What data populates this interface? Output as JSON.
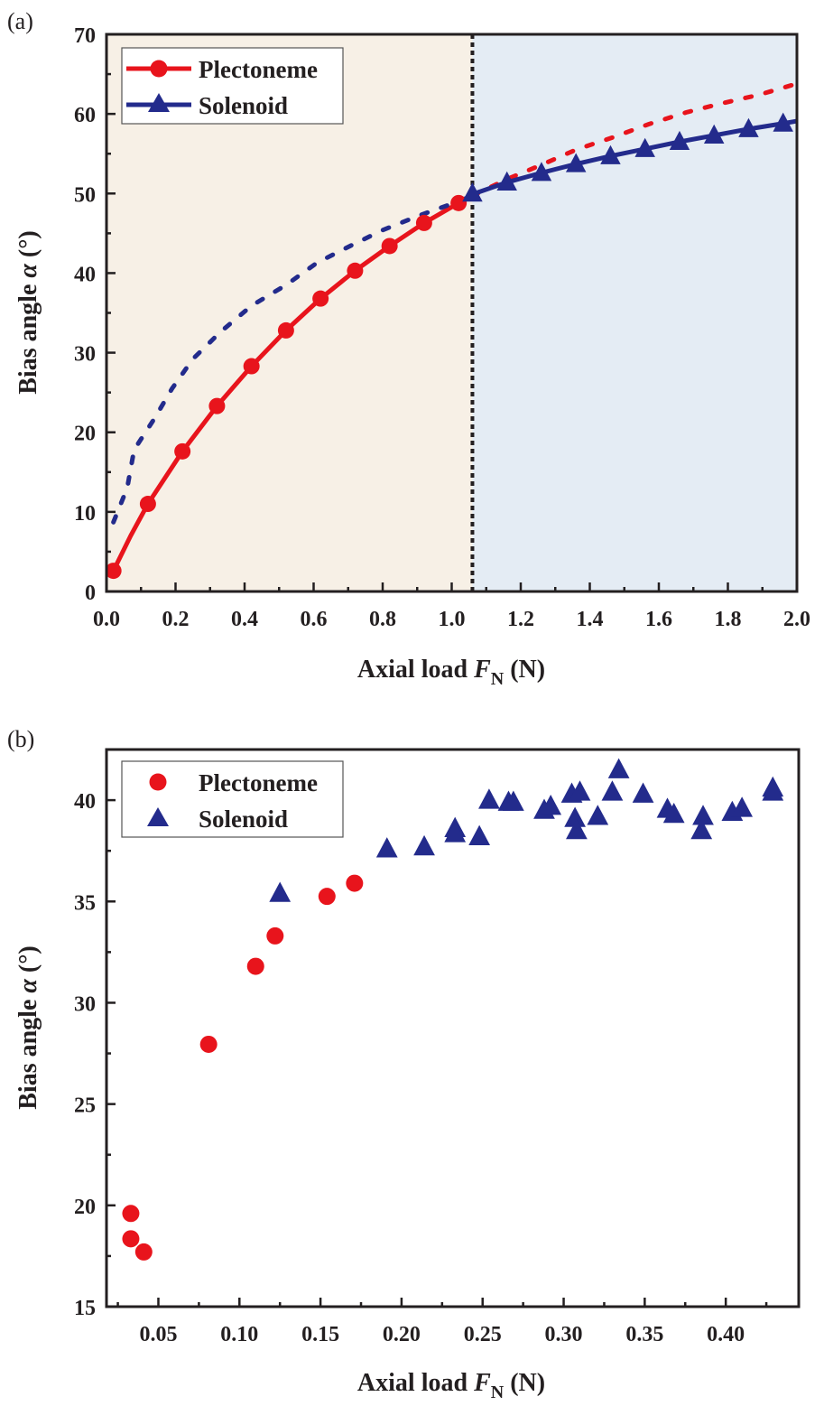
{
  "colors": {
    "plectoneme": "#e8141c",
    "solenoid": "#232b8c",
    "left_region": "#f7f0e6",
    "right_region": "#e4ecf4",
    "axis": "#231f20"
  },
  "chart_data": [
    {
      "panel_label": "(a)",
      "type": "line",
      "xlabel": {
        "prefix": "Axial load ",
        "var": "F",
        "sub": "N",
        "suffix": " (N)"
      },
      "ylabel": {
        "prefix": "Bias angle ",
        "var": "α",
        "suffix": " (°)"
      },
      "xlim": [
        0,
        2.0
      ],
      "ylim": [
        0,
        70
      ],
      "xticks": [
        0.0,
        0.2,
        0.4,
        0.6,
        0.8,
        1.0,
        1.2,
        1.4,
        1.6,
        1.8,
        2.0
      ],
      "xtick_labels": [
        "0.0",
        "0.2",
        "0.4",
        "0.6",
        "0.8",
        "1.0",
        "1.2",
        "1.4",
        "1.6",
        "1.8",
        "2.0"
      ],
      "yticks": [
        0,
        10,
        20,
        30,
        40,
        50,
        60,
        70
      ],
      "ytick_labels": [
        "0",
        "10",
        "20",
        "30",
        "40",
        "50",
        "60",
        "70"
      ],
      "grid": false,
      "legend_placement": "top-left",
      "transition_x": 1.06,
      "regions": [
        {
          "from": 0,
          "to": 1.06,
          "color": "#f7f0e6"
        },
        {
          "from": 1.06,
          "to": 2.0,
          "color": "#e4ecf4"
        }
      ],
      "series": [
        {
          "name": "Plectoneme",
          "marker": "circle",
          "color": "#e8141c",
          "x": [
            0.02,
            0.12,
            0.22,
            0.32,
            0.42,
            0.52,
            0.62,
            0.72,
            0.82,
            0.92,
            1.02
          ],
          "y": [
            2.6,
            11.0,
            17.6,
            23.3,
            28.3,
            32.8,
            36.8,
            40.3,
            43.4,
            46.3,
            48.8
          ],
          "solid_curve": [
            [
              0.02,
              2.6
            ],
            [
              0.07,
              7.0
            ],
            [
              0.12,
              11.0
            ],
            [
              0.22,
              17.6
            ],
            [
              0.32,
              23.3
            ],
            [
              0.42,
              28.3
            ],
            [
              0.52,
              32.8
            ],
            [
              0.62,
              36.8
            ],
            [
              0.72,
              40.3
            ],
            [
              0.82,
              43.4
            ],
            [
              0.92,
              46.3
            ],
            [
              1.02,
              48.8
            ],
            [
              1.06,
              49.7
            ]
          ],
          "dotted_curve": [
            [
              1.06,
              49.7
            ],
            [
              1.16,
              51.8
            ],
            [
              1.26,
              53.6
            ],
            [
              1.36,
              55.5
            ],
            [
              1.47,
              57.1
            ],
            [
              1.57,
              58.7
            ],
            [
              1.68,
              60.2
            ],
            [
              1.78,
              61.3
            ],
            [
              1.89,
              62.4
            ],
            [
              2.0,
              63.8
            ]
          ]
        },
        {
          "name": "Solenoid",
          "marker": "triangle",
          "color": "#232b8c",
          "x": [
            1.06,
            1.16,
            1.26,
            1.36,
            1.46,
            1.56,
            1.66,
            1.76,
            1.86,
            1.96
          ],
          "y": [
            50.0,
            51.4,
            52.6,
            53.7,
            54.7,
            55.6,
            56.5,
            57.3,
            58.1,
            58.8
          ],
          "solid_curve": [
            [
              1.06,
              49.9
            ],
            [
              1.16,
              51.4
            ],
            [
              1.26,
              52.6
            ],
            [
              1.36,
              53.7
            ],
            [
              1.46,
              54.7
            ],
            [
              1.56,
              55.6
            ],
            [
              1.66,
              56.5
            ],
            [
              1.76,
              57.3
            ],
            [
              1.86,
              58.1
            ],
            [
              1.96,
              58.8
            ],
            [
              2.0,
              59.1
            ]
          ],
          "dotted_curve": [
            [
              0.02,
              8.7
            ],
            [
              0.06,
              13.0
            ],
            [
              0.08,
              17.8
            ],
            [
              0.14,
              21.8
            ],
            [
              0.19,
              25.5
            ],
            [
              0.25,
              29.2
            ],
            [
              0.33,
              32.6
            ],
            [
              0.42,
              35.9
            ],
            [
              0.52,
              38.5
            ],
            [
              0.61,
              41.3
            ],
            [
              0.71,
              43.5
            ],
            [
              0.8,
              45.4
            ],
            [
              0.91,
              47.3
            ],
            [
              1.0,
              48.7
            ],
            [
              1.06,
              49.7
            ]
          ]
        }
      ]
    },
    {
      "panel_label": "(b)",
      "type": "scatter",
      "xlabel": {
        "prefix": "Axial load ",
        "var": "F",
        "sub": "N",
        "suffix": " (N)"
      },
      "ylabel": {
        "prefix": "Bias angle ",
        "var": "α",
        "suffix": " (°)"
      },
      "xlim": [
        0.018,
        0.445
      ],
      "ylim": [
        15,
        42.5
      ],
      "xticks": [
        0.05,
        0.1,
        0.15,
        0.2,
        0.25,
        0.3,
        0.35,
        0.4
      ],
      "xtick_labels": [
        "0.05",
        "0.10",
        "0.15",
        "0.20",
        "0.25",
        "0.30",
        "0.35",
        "0.40"
      ],
      "yticks": [
        15,
        20,
        25,
        30,
        35,
        40
      ],
      "ytick_labels": [
        "15",
        "20",
        "25",
        "30",
        "35",
        "40"
      ],
      "grid": false,
      "legend_placement": "top-left",
      "series": [
        {
          "name": "Plectoneme",
          "marker": "circle",
          "color": "#e8141c",
          "x": [
            0.033,
            0.033,
            0.041,
            0.081,
            0.11,
            0.122,
            0.154,
            0.171
          ],
          "y": [
            19.6,
            18.35,
            17.7,
            27.95,
            31.8,
            33.3,
            35.25,
            35.9
          ]
        },
        {
          "name": "Solenoid",
          "marker": "triangle",
          "color": "#232b8c",
          "x": [
            0.125,
            0.191,
            0.214,
            0.233,
            0.233,
            0.248,
            0.254,
            0.266,
            0.269,
            0.288,
            0.292,
            0.305,
            0.31,
            0.307,
            0.308,
            0.321,
            0.33,
            0.334,
            0.349,
            0.364,
            0.368,
            0.386,
            0.385,
            0.404,
            0.41,
            0.429,
            0.429
          ],
          "y": [
            35.4,
            37.6,
            37.7,
            38.6,
            38.35,
            38.2,
            40.0,
            39.9,
            39.9,
            39.5,
            39.7,
            40.3,
            40.4,
            39.1,
            38.5,
            39.2,
            40.4,
            41.5,
            40.3,
            39.55,
            39.3,
            39.2,
            38.5,
            39.4,
            39.6,
            40.6,
            40.4
          ]
        }
      ]
    }
  ]
}
